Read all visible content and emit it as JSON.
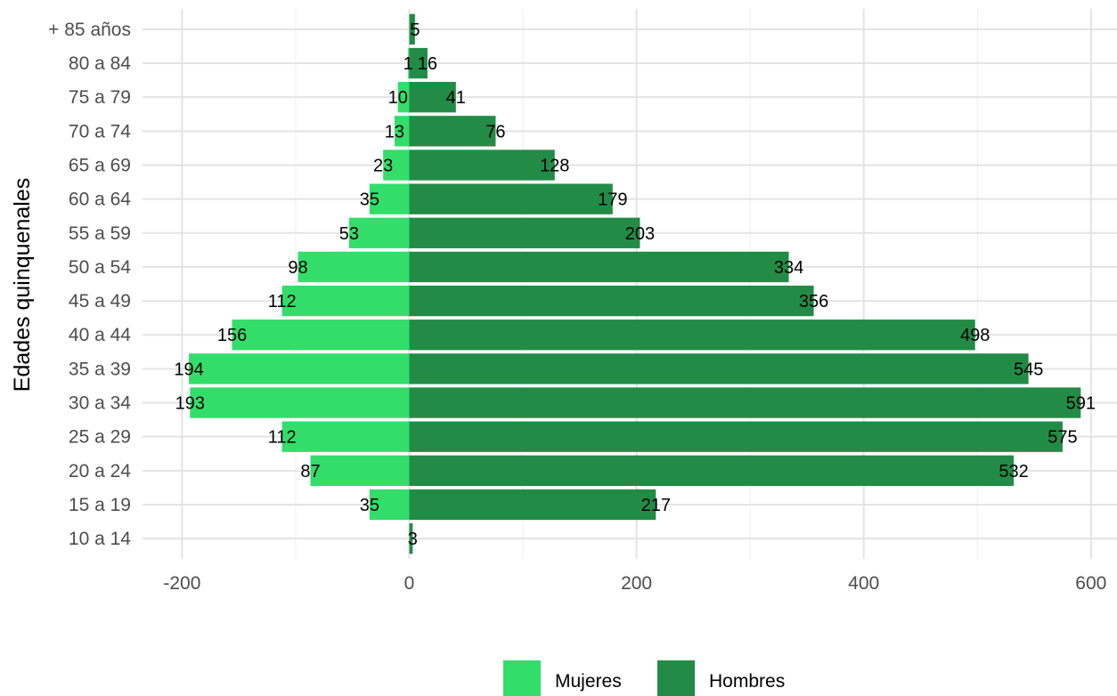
{
  "chart_data": {
    "type": "bar",
    "orientation": "horizontal",
    "title": "",
    "xlabel": "",
    "ylabel": "Edades quinquenales",
    "xlim": [
      -240,
      620
    ],
    "x_ticks": [
      -200,
      0,
      200,
      400,
      600
    ],
    "x_tick_labels": [
      "-200",
      "0",
      "200",
      "400",
      "600"
    ],
    "grid": true,
    "legend_position": "bottom",
    "categories": [
      "10 a 14",
      "15 a 19",
      "20 a 24",
      "25 a 29",
      "30 a 34",
      "35 a 39",
      "40 a 44",
      "45 a 49",
      "50 a 54",
      "55 a 59",
      "60 a 64",
      "65 a 69",
      "70 a 74",
      "75 a 79",
      "80 a 84",
      "+ 85 años"
    ],
    "series": [
      {
        "name": "Mujeres",
        "color": "#33dd6a",
        "values": [
          0,
          -35,
          -87,
          -112,
          -193,
          -194,
          -156,
          -112,
          -98,
          -53,
          -35,
          -23,
          -13,
          -10,
          -1,
          0
        ],
        "labels": [
          "",
          "35",
          "87",
          "112",
          "193",
          "194",
          "156",
          "112",
          "98",
          "53",
          "35",
          "23",
          "13",
          "10",
          "1",
          ""
        ]
      },
      {
        "name": "Hombres",
        "color": "#228b45",
        "values": [
          3,
          217,
          532,
          575,
          591,
          545,
          498,
          356,
          334,
          203,
          179,
          128,
          76,
          41,
          16,
          5
        ],
        "labels": [
          "3",
          "217",
          "532",
          "575",
          "591",
          "545",
          "498",
          "356",
          "334",
          "203",
          "179",
          "128",
          "76",
          "41",
          "16",
          "5"
        ]
      }
    ]
  }
}
